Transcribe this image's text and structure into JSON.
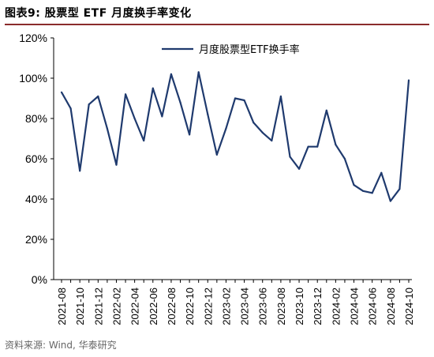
{
  "header": {
    "title": "图表9:  股票型 ETF 月度换手率变化"
  },
  "footer": {
    "source": "资料来源: Wind, 华泰研究"
  },
  "colors": {
    "series": "#1f3a6e",
    "title_rule": "#8a2b2b",
    "axis": "#000000"
  },
  "chart_data": {
    "type": "line",
    "title": "",
    "xlabel": "",
    "ylabel": "",
    "ylim": [
      0,
      120
    ],
    "yticks": [
      "0%",
      "20%",
      "40%",
      "60%",
      "80%",
      "100%",
      "120%"
    ],
    "xtick_labels": [
      "2021-08",
      "2021-10",
      "2021-12",
      "2022-02",
      "2022-04",
      "2022-06",
      "2022-08",
      "2022-10",
      "2022-12",
      "2023-02",
      "2023-04",
      "2023-06",
      "2023-08",
      "2023-10",
      "2023-12",
      "2024-02",
      "2024-04",
      "2024-06",
      "2024-08",
      "2024-10"
    ],
    "legend": {
      "placement": "top-left-inside"
    },
    "grid": false,
    "series": [
      {
        "name": "月度股票型ETF换手率",
        "x": [
          "2021-08",
          "2021-09",
          "2021-10",
          "2021-11",
          "2021-12",
          "2022-01",
          "2022-02",
          "2022-03",
          "2022-04",
          "2022-05",
          "2022-06",
          "2022-07",
          "2022-08",
          "2022-09",
          "2022-10",
          "2022-11",
          "2022-12",
          "2023-01",
          "2023-02",
          "2023-03",
          "2023-04",
          "2023-05",
          "2023-06",
          "2023-07",
          "2023-08",
          "2023-09",
          "2023-10",
          "2023-11",
          "2023-12",
          "2024-01",
          "2024-02",
          "2024-03",
          "2024-04",
          "2024-05",
          "2024-06",
          "2024-07",
          "2024-08",
          "2024-09",
          "2024-10"
        ],
        "values": [
          93,
          85,
          54,
          87,
          91,
          75,
          57,
          92,
          80,
          69,
          95,
          81,
          102,
          88,
          72,
          103,
          82,
          62,
          75,
          90,
          89,
          78,
          73,
          69,
          91,
          61,
          55,
          66,
          66,
          84,
          67,
          60,
          47,
          44,
          43,
          53,
          39,
          45,
          99
        ]
      }
    ]
  }
}
